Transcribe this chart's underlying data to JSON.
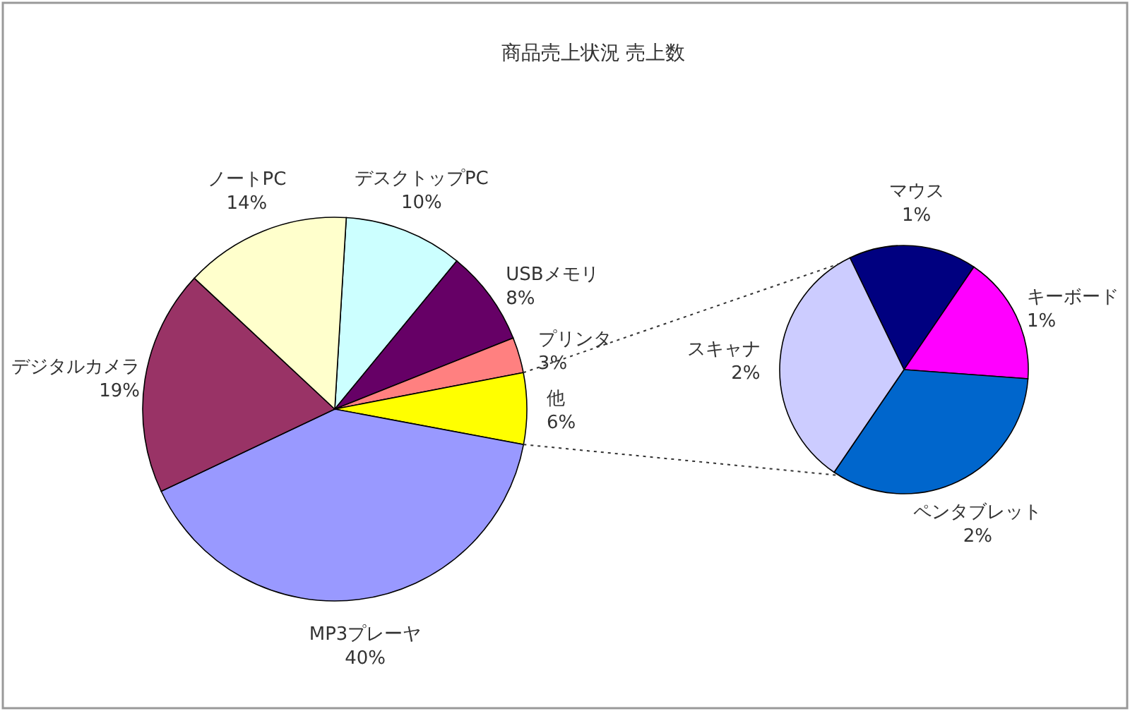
{
  "chart_data": [
    {
      "type": "pie",
      "title": "商品売上状況 売上数",
      "categories": [
        "デスクトップPC",
        "USBメモリ",
        "プリンタ",
        "他",
        "MP3プレーヤ",
        "デジタルカメラ",
        "ノートPC"
      ],
      "values": [
        10,
        8,
        3,
        6,
        40,
        19,
        14
      ],
      "colors": [
        "#ccffff",
        "#660066",
        "#ff8080",
        "#ffff00",
        "#9999ff",
        "#993366",
        "#ffffcc"
      ],
      "value_labels": [
        "10%",
        "8%",
        "3%",
        "6%",
        "40%",
        "19%",
        "14%"
      ]
    },
    {
      "type": "pie",
      "categories": [
        "マウス",
        "キーボード",
        "ペンタブレット",
        "スキャナ"
      ],
      "values": [
        1,
        1,
        2,
        2
      ],
      "colors": [
        "#000080",
        "#ff00ff",
        "#0066cc",
        "#ccccff"
      ],
      "value_labels": [
        "1%",
        "1%",
        "2%",
        "2%"
      ]
    }
  ]
}
